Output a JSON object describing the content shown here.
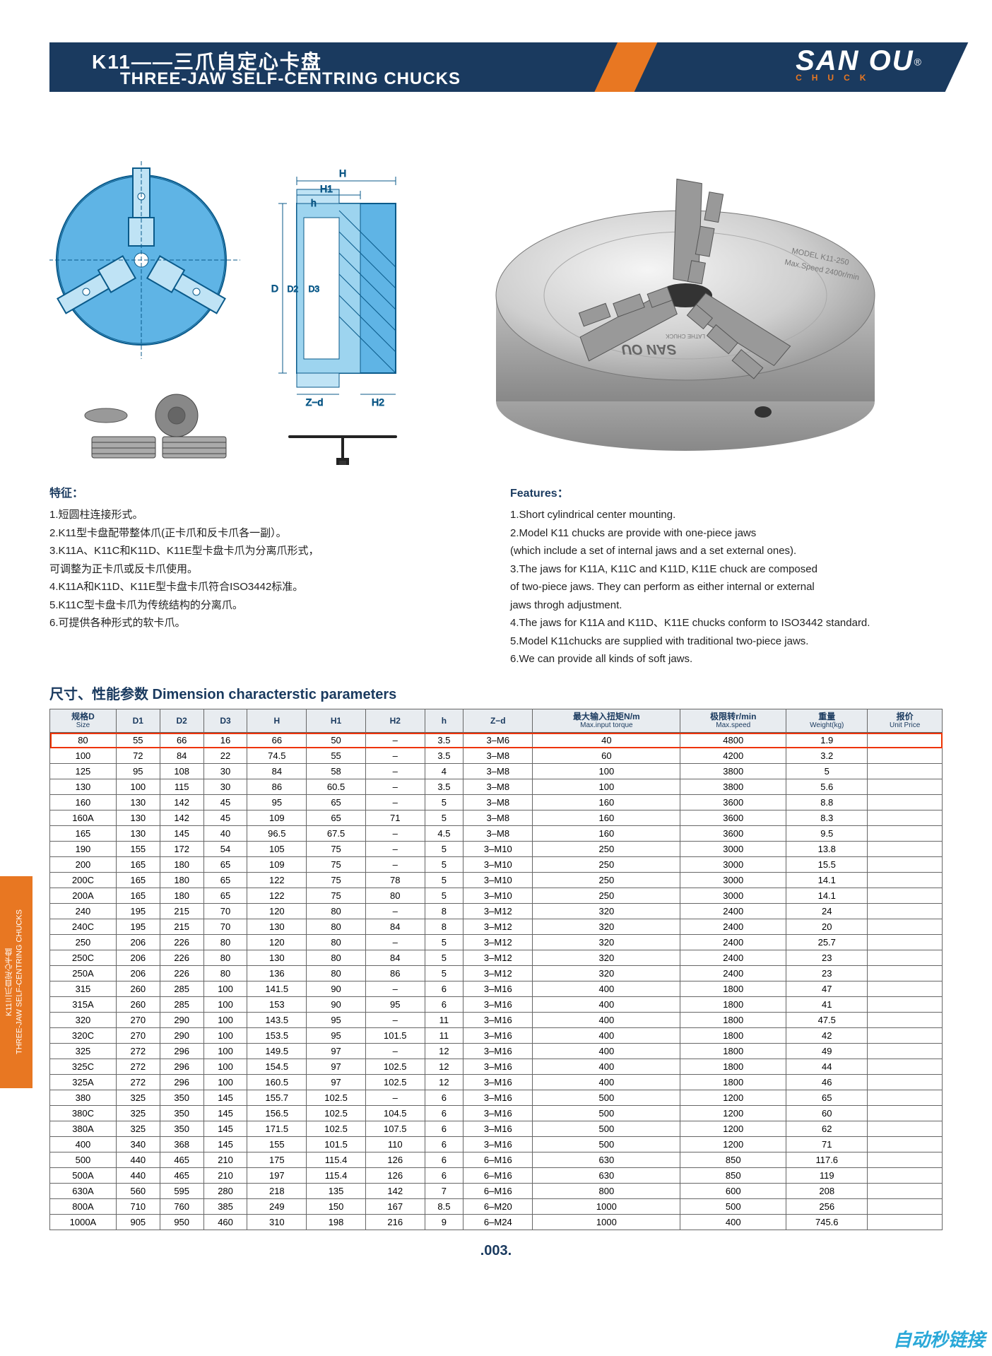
{
  "banner": {
    "title_cn": "K11——三爪自定心卡盘",
    "title_en": "THREE-JAW SELF-CENTRING CHUCKS",
    "logo_main": "SAN OU",
    "logo_reg": "®",
    "logo_sub": "CHUCK"
  },
  "diagram": {
    "labels": {
      "H": "H",
      "H1": "H1",
      "h": "h",
      "D": "D",
      "D2": "D2",
      "D3": "D3",
      "Zd": "Z−d",
      "H2": "H2"
    },
    "product_label1": "MODEL K11-250",
    "product_label2": "Max.Speed 2400r/min",
    "product_brand": "SAN OU",
    "product_brand_sub": "LATHE  CHUCK"
  },
  "features_cn": {
    "heading": "特征：",
    "items": [
      "1.短圆柱连接形式。",
      "2.K11型卡盘配带整体爪(正卡爪和反卡爪各一副）。",
      "3.K11A、K11C和K11D、K11E型卡盘卡爪为分离爪形式，",
      "  可调整为正卡爪或反卡爪使用。",
      "4.K11A和K11D、K11E型卡盘卡爪符合ISO3442标准。",
      "5.K11C型卡盘卡爪为传统结构的分离爪。",
      "6.可提供各种形式的软卡爪。"
    ]
  },
  "features_en": {
    "heading": "Features：",
    "items": [
      "1.Short cylindrical center mounting.",
      "2.Model K11 chucks are provide with one-piece jaws",
      "  (which include a set of internal jaws and a set external ones).",
      "3.The jaws for K11A, K11C and K11D, K11E chuck are composed",
      "  of two-piece jaws. They can perform as either internal or external",
      "  jaws throgh adjustment.",
      "4.The jaws for K11A and K11D、K11E chucks conform to ISO3442 standard.",
      "5.Model K11chucks are supplied with traditional two-piece jaws.",
      "6.We can provide all kinds of soft jaws."
    ]
  },
  "param_title": "尺寸、性能参数  Dimension characterstic parameters",
  "table": {
    "columns": [
      {
        "l1": "规格D",
        "l2": "Size"
      },
      {
        "l1": "D1",
        "l2": ""
      },
      {
        "l1": "D2",
        "l2": ""
      },
      {
        "l1": "D3",
        "l2": ""
      },
      {
        "l1": "H",
        "l2": ""
      },
      {
        "l1": "H1",
        "l2": ""
      },
      {
        "l1": "H2",
        "l2": ""
      },
      {
        "l1": "h",
        "l2": ""
      },
      {
        "l1": "Z−d",
        "l2": ""
      },
      {
        "l1": "最大输入扭矩N/m",
        "l2": "Max.input torque"
      },
      {
        "l1": "极限转r/min",
        "l2": "Max.speed"
      },
      {
        "l1": "重量",
        "l2": "Weight(kg)"
      },
      {
        "l1": "报价",
        "l2": "Unit Price"
      }
    ],
    "highlight_row_index": 0,
    "rows": [
      [
        "80",
        "55",
        "66",
        "16",
        "66",
        "50",
        "–",
        "3.5",
        "3–M6",
        "40",
        "4800",
        "1.9",
        ""
      ],
      [
        "100",
        "72",
        "84",
        "22",
        "74.5",
        "55",
        "–",
        "3.5",
        "3–M8",
        "60",
        "4200",
        "3.2",
        ""
      ],
      [
        "125",
        "95",
        "108",
        "30",
        "84",
        "58",
        "–",
        "4",
        "3–M8",
        "100",
        "3800",
        "5",
        ""
      ],
      [
        "130",
        "100",
        "115",
        "30",
        "86",
        "60.5",
        "–",
        "3.5",
        "3–M8",
        "100",
        "3800",
        "5.6",
        ""
      ],
      [
        "160",
        "130",
        "142",
        "45",
        "95",
        "65",
        "–",
        "5",
        "3–M8",
        "160",
        "3600",
        "8.8",
        ""
      ],
      [
        "160A",
        "130",
        "142",
        "45",
        "109",
        "65",
        "71",
        "5",
        "3–M8",
        "160",
        "3600",
        "8.3",
        ""
      ],
      [
        "165",
        "130",
        "145",
        "40",
        "96.5",
        "67.5",
        "–",
        "4.5",
        "3–M8",
        "160",
        "3600",
        "9.5",
        ""
      ],
      [
        "190",
        "155",
        "172",
        "54",
        "105",
        "75",
        "–",
        "5",
        "3–M10",
        "250",
        "3000",
        "13.8",
        ""
      ],
      [
        "200",
        "165",
        "180",
        "65",
        "109",
        "75",
        "–",
        "5",
        "3–M10",
        "250",
        "3000",
        "15.5",
        ""
      ],
      [
        "200C",
        "165",
        "180",
        "65",
        "122",
        "75",
        "78",
        "5",
        "3–M10",
        "250",
        "3000",
        "14.1",
        ""
      ],
      [
        "200A",
        "165",
        "180",
        "65",
        "122",
        "75",
        "80",
        "5",
        "3–M10",
        "250",
        "3000",
        "14.1",
        ""
      ],
      [
        "240",
        "195",
        "215",
        "70",
        "120",
        "80",
        "–",
        "8",
        "3–M12",
        "320",
        "2400",
        "24",
        ""
      ],
      [
        "240C",
        "195",
        "215",
        "70",
        "130",
        "80",
        "84",
        "8",
        "3–M12",
        "320",
        "2400",
        "20",
        ""
      ],
      [
        "250",
        "206",
        "226",
        "80",
        "120",
        "80",
        "–",
        "5",
        "3–M12",
        "320",
        "2400",
        "25.7",
        ""
      ],
      [
        "250C",
        "206",
        "226",
        "80",
        "130",
        "80",
        "84",
        "5",
        "3–M12",
        "320",
        "2400",
        "23",
        ""
      ],
      [
        "250A",
        "206",
        "226",
        "80",
        "136",
        "80",
        "86",
        "5",
        "3–M12",
        "320",
        "2400",
        "23",
        ""
      ],
      [
        "315",
        "260",
        "285",
        "100",
        "141.5",
        "90",
        "–",
        "6",
        "3–M16",
        "400",
        "1800",
        "47",
        ""
      ],
      [
        "315A",
        "260",
        "285",
        "100",
        "153",
        "90",
        "95",
        "6",
        "3–M16",
        "400",
        "1800",
        "41",
        ""
      ],
      [
        "320",
        "270",
        "290",
        "100",
        "143.5",
        "95",
        "–",
        "11",
        "3–M16",
        "400",
        "1800",
        "47.5",
        ""
      ],
      [
        "320C",
        "270",
        "290",
        "100",
        "153.5",
        "95",
        "101.5",
        "11",
        "3–M16",
        "400",
        "1800",
        "42",
        ""
      ],
      [
        "325",
        "272",
        "296",
        "100",
        "149.5",
        "97",
        "–",
        "12",
        "3–M16",
        "400",
        "1800",
        "49",
        ""
      ],
      [
        "325C",
        "272",
        "296",
        "100",
        "154.5",
        "97",
        "102.5",
        "12",
        "3–M16",
        "400",
        "1800",
        "44",
        ""
      ],
      [
        "325A",
        "272",
        "296",
        "100",
        "160.5",
        "97",
        "102.5",
        "12",
        "3–M16",
        "400",
        "1800",
        "46",
        ""
      ],
      [
        "380",
        "325",
        "350",
        "145",
        "155.7",
        "102.5",
        "–",
        "6",
        "3–M16",
        "500",
        "1200",
        "65",
        ""
      ],
      [
        "380C",
        "325",
        "350",
        "145",
        "156.5",
        "102.5",
        "104.5",
        "6",
        "3–M16",
        "500",
        "1200",
        "60",
        ""
      ],
      [
        "380A",
        "325",
        "350",
        "145",
        "171.5",
        "102.5",
        "107.5",
        "6",
        "3–M16",
        "500",
        "1200",
        "62",
        ""
      ],
      [
        "400",
        "340",
        "368",
        "145",
        "155",
        "101.5",
        "110",
        "6",
        "3–M16",
        "500",
        "1200",
        "71",
        ""
      ],
      [
        "500",
        "440",
        "465",
        "210",
        "175",
        "115.4",
        "126",
        "6",
        "6–M16",
        "630",
        "850",
        "117.6",
        ""
      ],
      [
        "500A",
        "440",
        "465",
        "210",
        "197",
        "115.4",
        "126",
        "6",
        "6–M16",
        "630",
        "850",
        "119",
        ""
      ],
      [
        "630A",
        "560",
        "595",
        "280",
        "218",
        "135",
        "142",
        "7",
        "6–M16",
        "800",
        "600",
        "208",
        ""
      ],
      [
        "800A",
        "710",
        "760",
        "385",
        "249",
        "150",
        "167",
        "8.5",
        "6–M20",
        "1000",
        "500",
        "256",
        ""
      ],
      [
        "1000A",
        "905",
        "950",
        "460",
        "310",
        "198",
        "216",
        "9",
        "6–M24",
        "1000",
        "400",
        "745.6",
        ""
      ]
    ]
  },
  "sidebar": {
    "text_cn": "K11三爪自定心卡盘",
    "text_en": "THREE-JAW SELF-CENTRING CHUCKS"
  },
  "page_number": ".003.",
  "watermark": "自动秒链接",
  "colors": {
    "brand_blue": "#1a3a5f",
    "brand_orange": "#e87722",
    "diagram_fill": "#5fb4e5",
    "diagram_stroke": "#0a5a8a"
  }
}
